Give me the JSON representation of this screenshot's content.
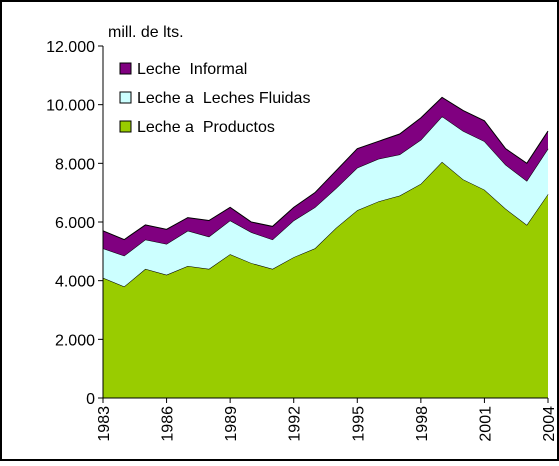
{
  "chart_data": {
    "type": "stacked_area",
    "y_axis_label": "mill. de lts.",
    "x": [
      1983,
      1984,
      1985,
      1986,
      1987,
      1988,
      1989,
      1990,
      1991,
      1992,
      1993,
      1994,
      1995,
      1996,
      1997,
      1998,
      1999,
      2000,
      2001,
      2002,
      2003,
      2004
    ],
    "xlim": [
      1983,
      2004
    ],
    "xticks": [
      1983,
      1986,
      1989,
      1992,
      1995,
      1998,
      2001,
      2004
    ],
    "ylim": [
      0,
      12000
    ],
    "yticks": [
      0,
      {
        "value": 2000,
        "label": "2.000"
      },
      {
        "value": 4000,
        "label": "4.000"
      },
      {
        "value": 6000,
        "label": "6.000"
      },
      {
        "value": 8000,
        "label": "8.000"
      },
      {
        "value": 10000,
        "label": "10.000"
      },
      {
        "value": 12000,
        "label": "12.000"
      }
    ],
    "series": [
      {
        "name": "Leche  Informal",
        "color": "#800080",
        "values": [
          600,
          550,
          500,
          500,
          450,
          550,
          450,
          350,
          450,
          450,
          500,
          600,
          650,
          600,
          700,
          750,
          650,
          700,
          700,
          550,
          600,
          600
        ]
      },
      {
        "name": "Leche a  Leches Fluidas",
        "color": "#ccffff",
        "values": [
          1000,
          1050,
          1000,
          1050,
          1200,
          1100,
          1150,
          1050,
          1000,
          1250,
          1400,
          1350,
          1450,
          1450,
          1400,
          1500,
          1550,
          1650,
          1650,
          1500,
          1500,
          1550
        ]
      },
      {
        "name": "Leche a  Productos",
        "color": "#99cc00",
        "values": [
          4100,
          3800,
          4400,
          4200,
          4500,
          4400,
          4900,
          4600,
          4400,
          4800,
          5100,
          5800,
          6400,
          6700,
          6900,
          7300,
          8050,
          7450,
          7100,
          6450,
          5900,
          6950
        ]
      }
    ]
  }
}
